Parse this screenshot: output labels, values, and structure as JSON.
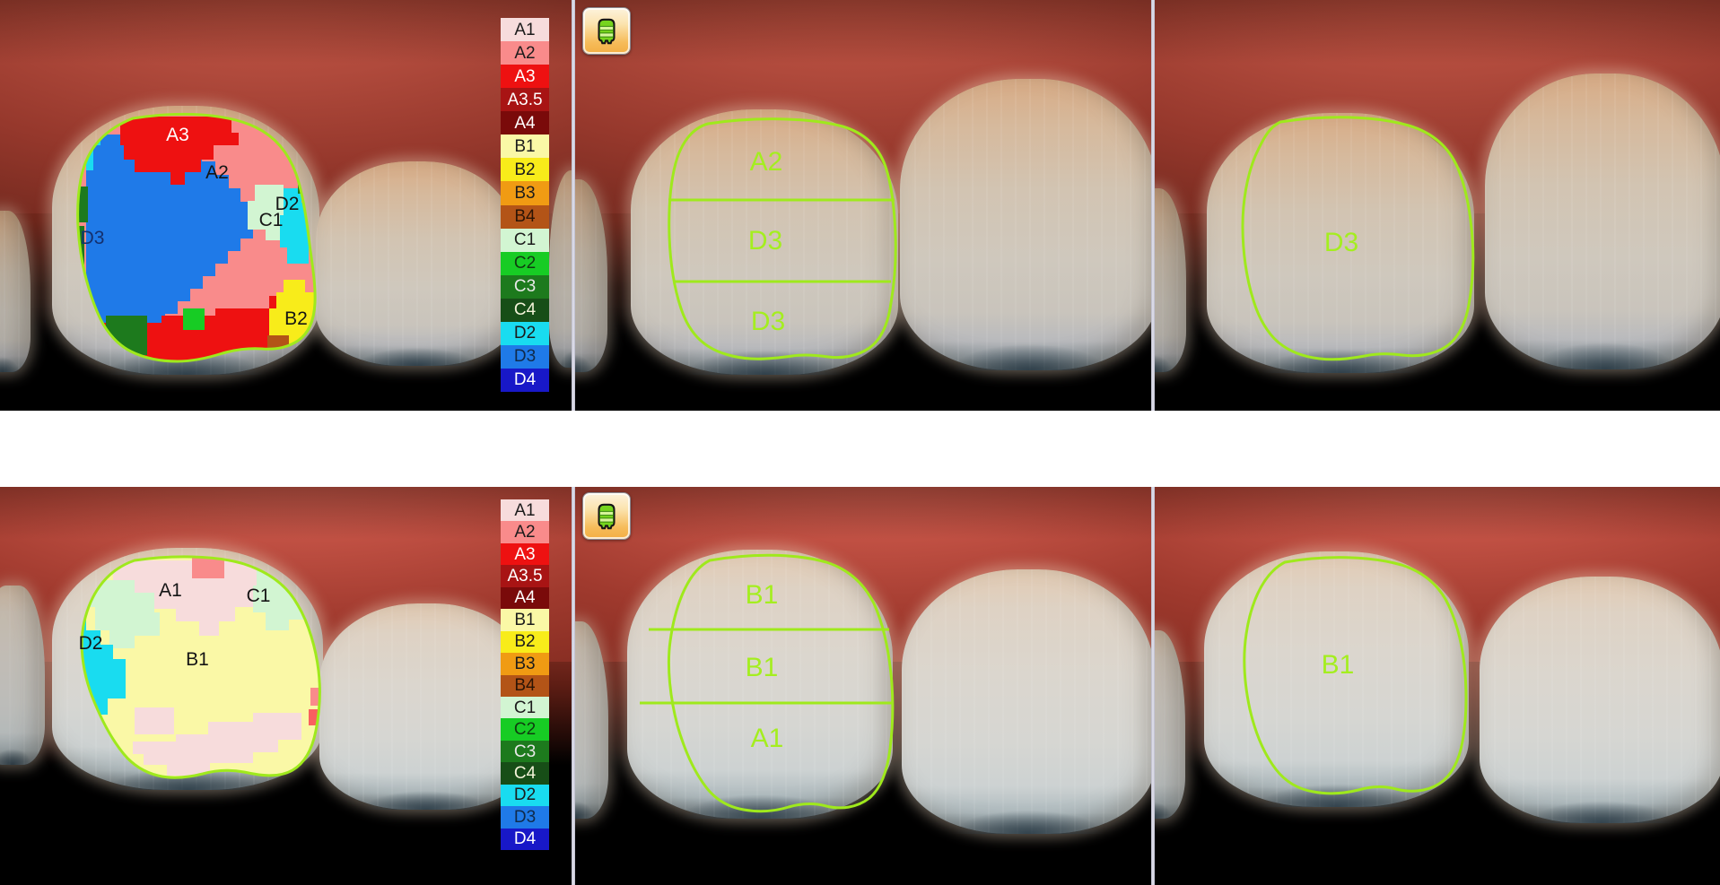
{
  "legend": {
    "shades": [
      {
        "label": "A1",
        "color": "#f7dcdc",
        "text_color": "#1c1c1c"
      },
      {
        "label": "A2",
        "color": "#f98b8b",
        "text_color": "#1c1c1c"
      },
      {
        "label": "A3",
        "color": "#ee1111",
        "text_color": "#ffffff"
      },
      {
        "label": "A3.5",
        "color": "#a81414",
        "text_color": "#ffffff"
      },
      {
        "label": "A4",
        "color": "#7a0a0a",
        "text_color": "#ffffff"
      },
      {
        "label": "B1",
        "color": "#faf8a6",
        "text_color": "#1c1c1c"
      },
      {
        "label": "B2",
        "color": "#f8ec1a",
        "text_color": "#1c1c1c"
      },
      {
        "label": "B3",
        "color": "#f09b13",
        "text_color": "#1c1c1c"
      },
      {
        "label": "B4",
        "color": "#b35417",
        "text_color": "#2a1405"
      },
      {
        "label": "C1",
        "color": "#d2f5d2",
        "text_color": "#1c1c1c"
      },
      {
        "label": "C2",
        "color": "#17cc24",
        "text_color": "#103a10"
      },
      {
        "label": "C3",
        "color": "#1d7a1d",
        "text_color": "#e8e8e8"
      },
      {
        "label": "C4",
        "color": "#174e17",
        "text_color": "#f3f3d8"
      },
      {
        "label": "D2",
        "color": "#19dcf0",
        "text_color": "#1c1c1c"
      },
      {
        "label": "D3",
        "color": "#1f7ae8",
        "text_color": "#102a4a"
      },
      {
        "label": "D4",
        "color": "#1818c8",
        "text_color": "#ffffff"
      }
    ]
  },
  "colors": {
    "outline_green": "#9fe91c"
  },
  "rows": {
    "top": {
      "shade_map_labels": [
        {
          "text": "A3",
          "color": "#ffffff"
        },
        {
          "text": "A2",
          "color": "#151515"
        },
        {
          "text": "D2",
          "color": "#151515"
        },
        {
          "text": "C1",
          "color": "#151515"
        },
        {
          "text": "D3",
          "color": "#14306e"
        },
        {
          "text": "B2",
          "color": "#151515"
        }
      ],
      "zones": [
        "A2",
        "D3",
        "D3"
      ],
      "overall_shade": "D3"
    },
    "bottom": {
      "shade_map_labels": [
        {
          "text": "A1",
          "color": "#151515"
        },
        {
          "text": "C1",
          "color": "#151515"
        },
        {
          "text": "D2",
          "color": "#151515"
        },
        {
          "text": "B1",
          "color": "#151515"
        }
      ],
      "zones": [
        "B1",
        "B1",
        "A1"
      ],
      "overall_shade": "B1"
    }
  }
}
